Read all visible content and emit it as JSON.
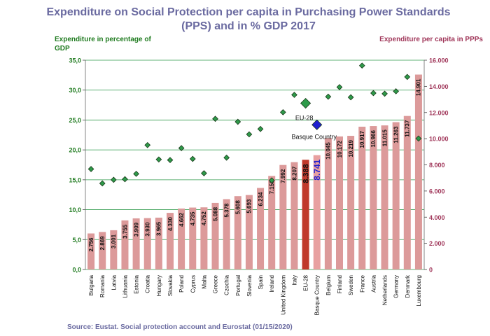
{
  "chart_data": {
    "type": "bar",
    "title": "Expenditure on Social Protection per capita in Purchasing Power Standards (PPS) and in % GDP 2017",
    "left_axis_label": "Expenditure in percentage of GDP",
    "right_axis_label": "Expenditure per capita in PPPs",
    "source": "Source: Eustat. Social protection account and Eurostat (01/15/2020)",
    "left_ticks": [
      "0,0",
      "5,0",
      "10,0",
      "15,0",
      "20,0",
      "25,0",
      "30,0",
      "35,0"
    ],
    "right_ticks": [
      "0",
      "2.000",
      "4.000",
      "6.000",
      "8.000",
      "10.000",
      "12.000",
      "14.000",
      "16.000"
    ],
    "ylim_left": [
      0,
      35
    ],
    "ylim_right": [
      0,
      16000
    ],
    "categories": [
      "Bulgaria",
      "Romania",
      "Latvia",
      "Lithuania",
      "Estonia",
      "Croatia",
      "Hungary",
      "Slovakia",
      "Poland",
      "Cyprus",
      "Malta",
      "Greece",
      "Czechia",
      "Portugal",
      "Slovenia",
      "Spain",
      "Ireland",
      "United Kingdom",
      "Italy",
      "EU-28",
      "Basque Country",
      "Belgium",
      "Finland",
      "Sweden",
      "France",
      "Austria",
      "Netherlands",
      "Germany",
      "Denmark",
      "Luxembourg"
    ],
    "series": [
      {
        "name": "Expenditure per capita in PPS",
        "axis": "right",
        "kind": "bar",
        "values": [
          2756,
          2869,
          3001,
          3755,
          3909,
          3930,
          3965,
          4330,
          4662,
          4735,
          4752,
          5088,
          5378,
          5608,
          5693,
          6234,
          7153,
          7992,
          8207,
          8388,
          8741,
          10045,
          10172,
          10219,
          10917,
          10966,
          11015,
          11263,
          11737,
          14901
        ],
        "labels": [
          "2.756",
          "2.869",
          "3.001",
          "3.755",
          "3.909",
          "3.930",
          "3.965",
          "4.330",
          "4.662",
          "4.735",
          "4.752",
          "5.088",
          "5.378",
          "5.608",
          "5.693",
          "6.234",
          "7.153",
          "7.992",
          "8.207",
          "8.388",
          "8.741",
          "10.045",
          "10.172",
          "10.219",
          "10.917",
          "10.966",
          "11.015",
          "11.263",
          "11.737",
          "14.901"
        ]
      },
      {
        "name": "Expenditure in % of GDP",
        "axis": "left",
        "kind": "marker",
        "values": [
          16.8,
          14.4,
          15.0,
          15.1,
          16.0,
          20.8,
          18.4,
          18.3,
          20.3,
          18.5,
          16.1,
          25.2,
          18.7,
          24.7,
          22.6,
          23.5,
          14.9,
          26.3,
          29.2,
          27.8,
          24.2,
          28.9,
          30.5,
          28.8,
          34.1,
          29.5,
          29.4,
          29.8,
          32.2,
          21.9
        ]
      }
    ],
    "highlight": {
      "eu": {
        "category": "EU-28",
        "label": "EU-28",
        "bar_color": "#c0392b",
        "marker_color": "#2e9a4a"
      },
      "basque": {
        "category": "Basque Country",
        "label": "Basque Country",
        "bar_color": "#e8a0a0",
        "marker_color": "#1f1fd0",
        "value_label_color": "#1f1fd0"
      }
    },
    "colors": {
      "bar": "#dc9a9a",
      "marker": "#2e9a4a",
      "grid": "#2e9a4a",
      "left_axis_text": "#1e7a1e",
      "right_axis_text": "#a0375a"
    }
  }
}
